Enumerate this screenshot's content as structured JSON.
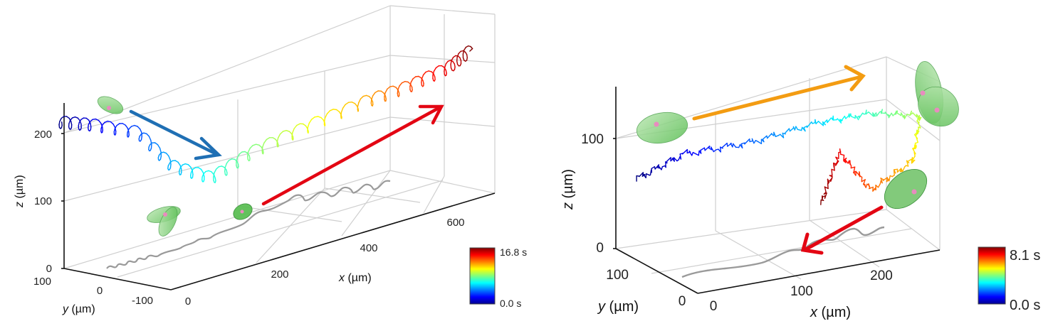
{
  "chart_data": [
    {
      "type": "line",
      "chart": "3d-trajectory",
      "xlabel_var": "x",
      "xlabel_unit": " (µm)",
      "ylabel_var": "y",
      "ylabel_unit": " (µm)",
      "zlabel_var": "z",
      "zlabel_unit": " (µm)",
      "xticks": [
        "0",
        "200",
        "400",
        "600"
      ],
      "yticks": [
        "100",
        "0",
        "-100"
      ],
      "zticks": [
        "0",
        "100",
        "200"
      ],
      "xlim": [
        0,
        700
      ],
      "ylim": [
        -130,
        130
      ],
      "zlim": [
        0,
        260
      ],
      "colorbar": {
        "max_label": "16.8 s",
        "min_label": "0.0 s",
        "colormap": "jet",
        "range": [
          0,
          16.8
        ]
      },
      "trajectory": {
        "time_range_s": [
          0,
          16.8
        ],
        "color_encoding": "time",
        "approx_path": [
          {
            "x": 10,
            "y": 40,
            "z": 205
          },
          {
            "x": 60,
            "y": 30,
            "z": 195
          },
          {
            "x": 130,
            "y": 20,
            "z": 175
          },
          {
            "x": 180,
            "y": 10,
            "z": 120
          },
          {
            "x": 240,
            "y": 0,
            "z": 95
          },
          {
            "x": 300,
            "y": -10,
            "z": 125
          },
          {
            "x": 380,
            "y": -20,
            "z": 150
          },
          {
            "x": 470,
            "y": -30,
            "z": 175
          },
          {
            "x": 540,
            "y": -40,
            "z": 190
          },
          {
            "x": 600,
            "y": -50,
            "z": 210
          },
          {
            "x": 630,
            "y": -60,
            "z": 232
          }
        ]
      },
      "projection_color": "#999999",
      "arrow_colors": [
        "#1f6fb4",
        "#e30613"
      ]
    },
    {
      "type": "line",
      "chart": "3d-trajectory",
      "xlabel_var": "x",
      "xlabel_unit": " (µm)",
      "ylabel_var": "y",
      "ylabel_unit": " (µm)",
      "zlabel_var": "z",
      "zlabel_unit": " (µm)",
      "xticks": [
        "0",
        "100",
        "200"
      ],
      "yticks": [
        "100",
        "0"
      ],
      "zticks": [
        "0",
        "100"
      ],
      "xlim": [
        0,
        240
      ],
      "ylim": [
        0,
        150
      ],
      "zlim": [
        0,
        140
      ],
      "colorbar": {
        "max_label": "8.1 s",
        "min_label": "0.0 s",
        "colormap": "jet",
        "range": [
          0,
          8.1
        ]
      },
      "trajectory": {
        "time_range_s": [
          0,
          8.1
        ],
        "color_encoding": "time",
        "approx_path": [
          {
            "x": 5,
            "y": 110,
            "z": 80
          },
          {
            "x": 40,
            "y": 110,
            "z": 100
          },
          {
            "x": 90,
            "y": 110,
            "z": 105
          },
          {
            "x": 140,
            "y": 110,
            "z": 118
          },
          {
            "x": 180,
            "y": 110,
            "z": 122
          },
          {
            "x": 215,
            "y": 110,
            "z": 115
          },
          {
            "x": 200,
            "y": 60,
            "z": 70
          },
          {
            "x": 165,
            "y": 40,
            "z": 45
          },
          {
            "x": 140,
            "y": 30,
            "z": 85
          },
          {
            "x": 125,
            "y": 25,
            "z": 35
          }
        ]
      },
      "projection_color": "#999999",
      "arrow_colors": [
        "#f39c12",
        "#e30613"
      ]
    }
  ]
}
